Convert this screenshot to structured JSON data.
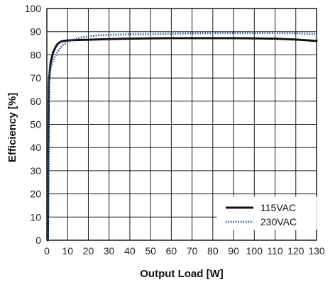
{
  "chart_data": {
    "type": "line",
    "title": "",
    "xlabel": "Output Load [W]",
    "ylabel": "Efficiency [%]",
    "xlim": [
      0,
      130
    ],
    "ylim": [
      0,
      100
    ],
    "xticks": [
      0,
      10,
      20,
      30,
      40,
      50,
      60,
      70,
      80,
      90,
      100,
      110,
      120,
      130
    ],
    "yticks": [
      0,
      10,
      20,
      30,
      40,
      50,
      60,
      70,
      80,
      90,
      100
    ],
    "grid": true,
    "legend_position": "bottom-right",
    "series": [
      {
        "name": "115VAC",
        "style": "solid",
        "color": "#111111",
        "x": [
          0.5,
          0.8,
          1,
          1.5,
          2,
          3,
          4,
          5,
          6,
          7,
          8,
          10,
          12,
          15,
          20,
          30,
          40,
          50,
          60,
          70,
          80,
          90,
          100,
          110,
          120,
          130
        ],
        "y": [
          0,
          50,
          68,
          74,
          77.5,
          81,
          83,
          84.5,
          85.3,
          85.8,
          86,
          86.2,
          86.3,
          86.4,
          86.5,
          86.8,
          87,
          87.1,
          87.2,
          87.2,
          87.2,
          87.2,
          87.1,
          87,
          86.6,
          86
        ]
      },
      {
        "name": "230VAC",
        "style": "dotted",
        "color": "#2e5aa8",
        "x": [
          0.5,
          0.8,
          1,
          1.5,
          2,
          3,
          4,
          5,
          6,
          8,
          10,
          12,
          15,
          20,
          25,
          30,
          40,
          50,
          60,
          70,
          80,
          90,
          100,
          110,
          120,
          130
        ],
        "y": [
          0,
          55,
          70,
          73,
          75,
          77.5,
          79.5,
          81,
          82.5,
          84.5,
          85.5,
          86.3,
          87.2,
          88,
          88.4,
          88.6,
          88.9,
          89,
          89.2,
          89.3,
          89.4,
          89.4,
          89.4,
          89.4,
          89.3,
          88.9
        ]
      }
    ]
  },
  "colors": {
    "grid": "#1a1a1a",
    "series_115": "#111111",
    "series_230": "#2e5aa8"
  }
}
